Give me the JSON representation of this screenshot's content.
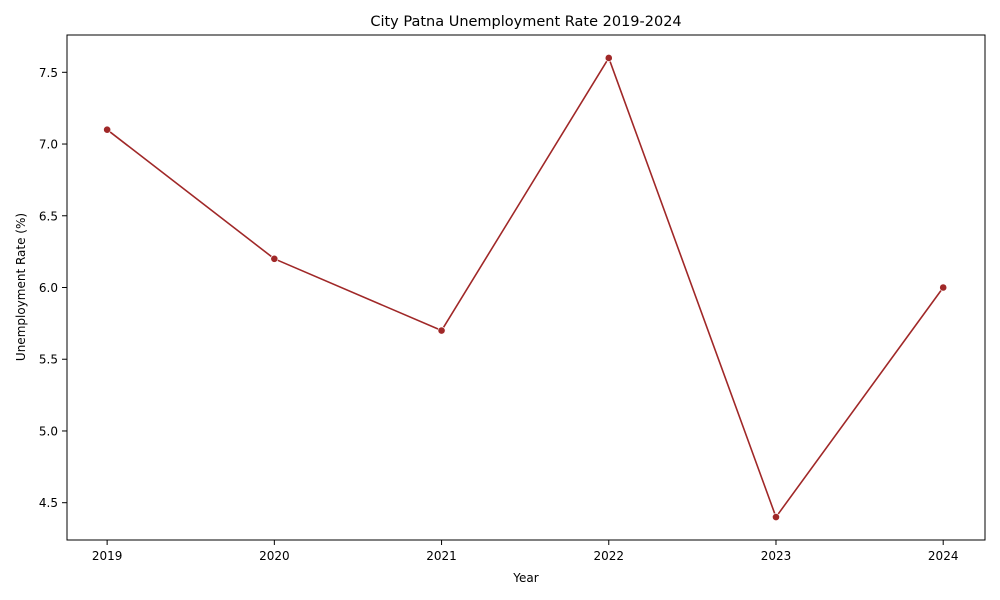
{
  "chart_data": {
    "type": "line",
    "title": "City Patna Unemployment Rate 2019-2024",
    "xlabel": "Year",
    "ylabel": "Unemployment Rate (%)",
    "x": [
      2019,
      2020,
      2021,
      2022,
      2023,
      2024
    ],
    "x_tick_labels": [
      "2019",
      "2020",
      "2021",
      "2022",
      "2023",
      "2024"
    ],
    "series": [
      {
        "values": [
          7.1,
          6.2,
          5.7,
          7.6,
          4.4,
          6.0
        ],
        "color": "#a02828",
        "marker": "circle"
      }
    ],
    "y_ticks": [
      4.5,
      5.0,
      5.5,
      6.0,
      6.5,
      7.0,
      7.5
    ],
    "y_tick_labels": [
      "4.5",
      "5.0",
      "5.5",
      "6.0",
      "6.5",
      "7.0",
      "7.5"
    ],
    "xlim": [
      2018.76,
      2024.25
    ],
    "ylim": [
      4.24,
      7.76
    ],
    "grid": false,
    "legend": "none"
  }
}
